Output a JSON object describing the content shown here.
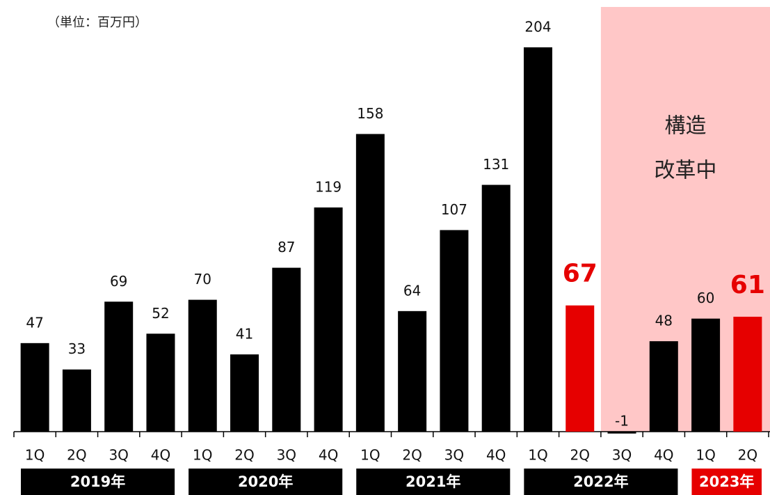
{
  "chart_data": {
    "type": "bar",
    "unit_label": "（単位：百万円）",
    "categories": [
      "1Q",
      "2Q",
      "3Q",
      "4Q",
      "1Q",
      "2Q",
      "3Q",
      "4Q",
      "1Q",
      "2Q",
      "3Q",
      "4Q",
      "1Q",
      "2Q",
      "3Q",
      "4Q",
      "1Q",
      "2Q"
    ],
    "values": [
      47,
      33,
      69,
      52,
      70,
      41,
      87,
      119,
      158,
      64,
      107,
      131,
      204,
      67,
      -1,
      48,
      60,
      61
    ],
    "color": "#000000",
    "colors": [
      "#000000",
      "#000000",
      "#000000",
      "#000000",
      "#000000",
      "#000000",
      "#000000",
      "#000000",
      "#000000",
      "#000000",
      "#000000",
      "#000000",
      "#000000",
      "#e60000",
      "#000000",
      "#000000",
      "#000000",
      "#e60000"
    ],
    "years": [
      {
        "label": "2019年",
        "quarters": 4,
        "color": "#000000"
      },
      {
        "label": "2020年",
        "quarters": 4,
        "color": "#000000"
      },
      {
        "label": "2021年",
        "quarters": 4,
        "color": "#000000"
      },
      {
        "label": "2022年",
        "quarters": 4,
        "color": "#000000"
      },
      {
        "label": "2023年",
        "quarters": 2,
        "color": "#e60000"
      }
    ],
    "annotation": {
      "lines": [
        "構造",
        "改革中"
      ],
      "color": "#ffc7c7"
    }
  }
}
